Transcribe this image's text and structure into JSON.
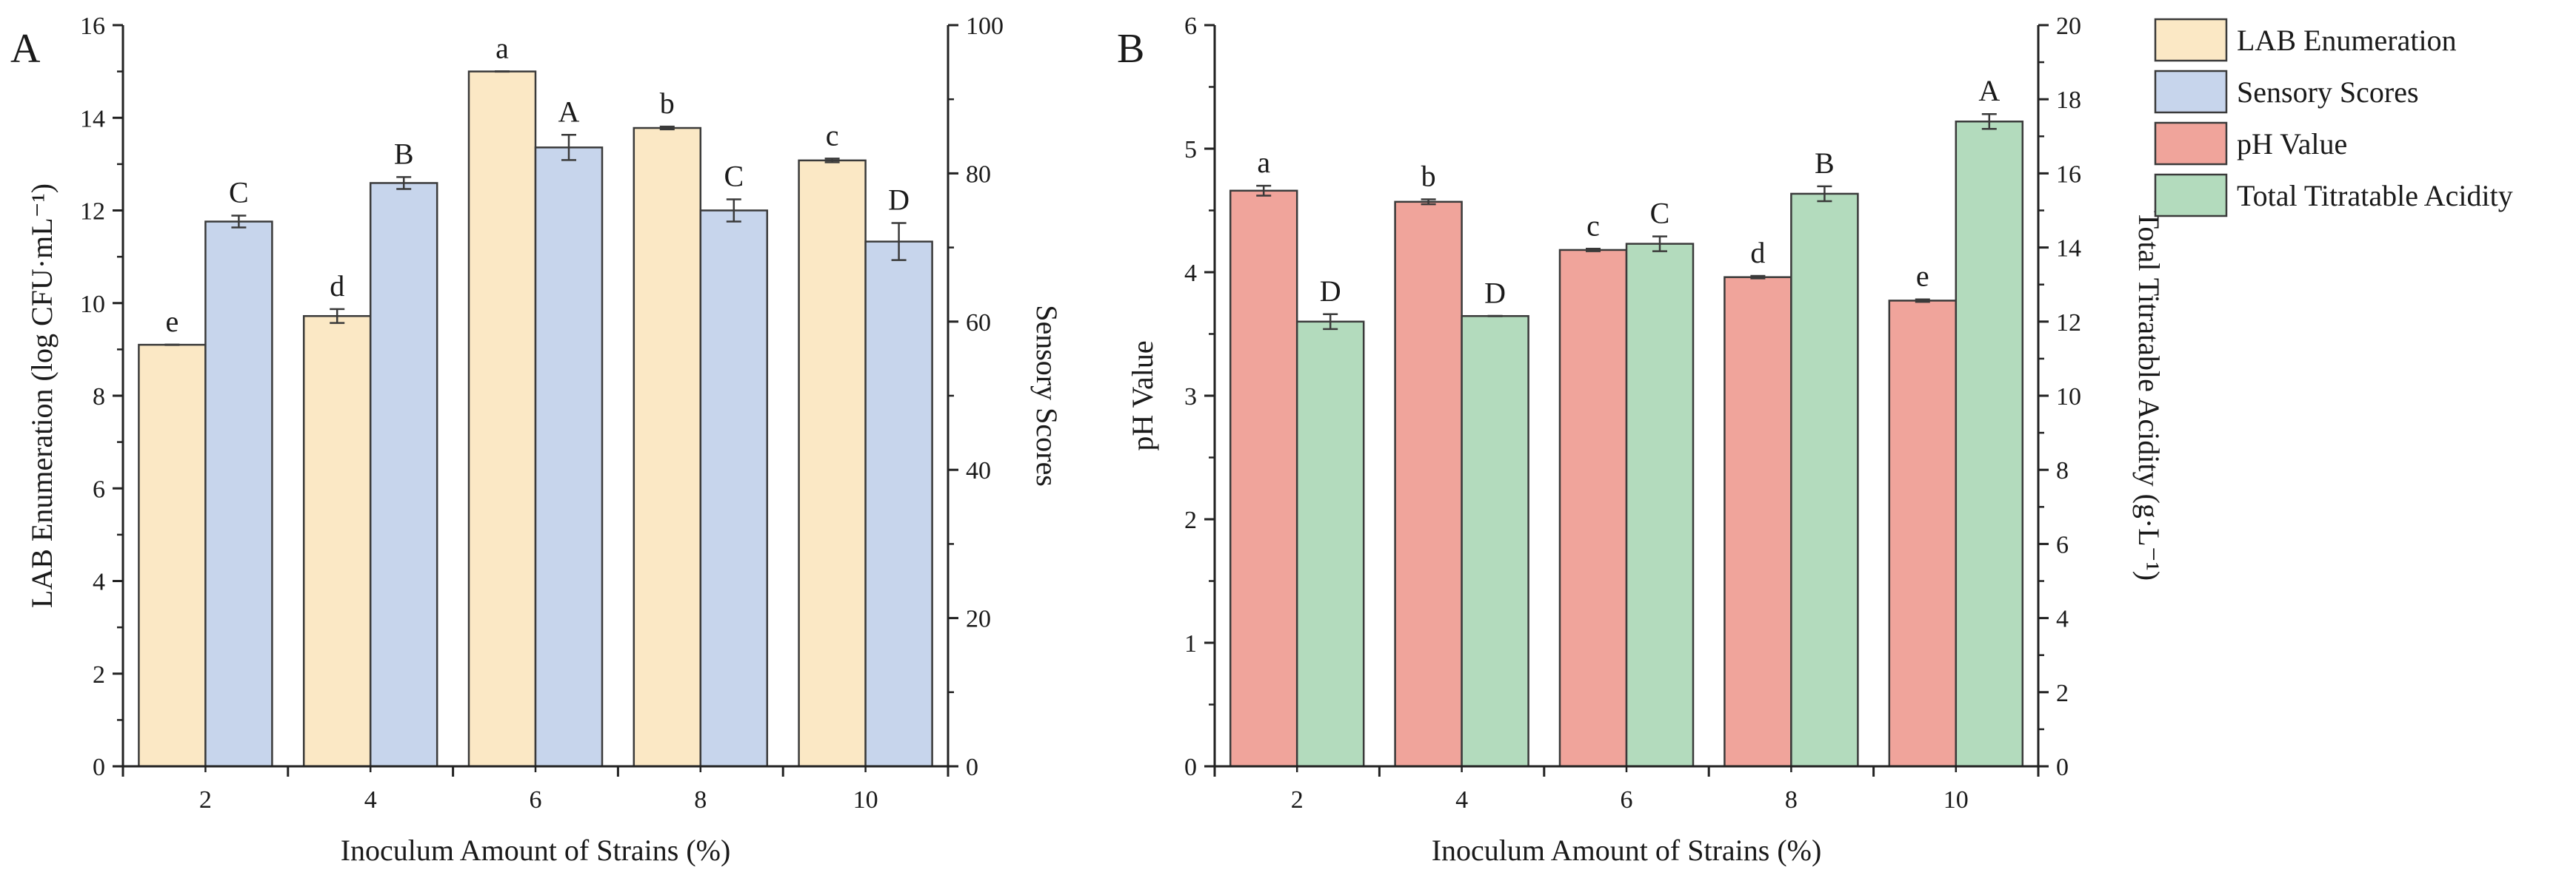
{
  "colors": {
    "lab": "#fbe8c5",
    "sensory": "#c7d5ec",
    "ph": "#f0a49b",
    "tta": "#b3dbbd",
    "bar_edge": "#3a3a3a",
    "axis": "#222222"
  },
  "legend": {
    "items": [
      {
        "label": "LAB Enumeration",
        "color": "#fbe8c5"
      },
      {
        "label": "Sensory Scores",
        "color": "#c7d5ec"
      },
      {
        "label": "pH Value",
        "color": "#f0a49b"
      },
      {
        "label": "Total Titratable Acidity",
        "color": "#b3dbbd"
      }
    ]
  },
  "chart_data": [
    {
      "type": "bar",
      "panel": "A",
      "categories": [
        "2",
        "4",
        "6",
        "8",
        "10"
      ],
      "xlabel": "Inoculum Amount of Strains (%)",
      "y_left": {
        "label": "LAB Enumeration (log CFU·mL⁻¹)",
        "ylim": [
          0,
          16
        ],
        "ticks": [
          0,
          2,
          4,
          6,
          8,
          10,
          12,
          14,
          16
        ]
      },
      "y_right": {
        "label": "Sensory Scores",
        "ylim": [
          0,
          100
        ],
        "ticks": [
          0,
          20,
          40,
          60,
          80,
          100
        ]
      },
      "series": [
        {
          "name": "LAB Enumeration",
          "axis": "left",
          "color": "#fbe8c5",
          "values": [
            9.1,
            9.72,
            15.0,
            13.78,
            13.08
          ],
          "errors": [
            0.0,
            0.15,
            0.0,
            0.03,
            0.04
          ],
          "letters": [
            "e",
            "d",
            "a",
            "b",
            "c"
          ]
        },
        {
          "name": "Sensory Scores",
          "axis": "right",
          "color": "#c7d5ec",
          "values": [
            73.5,
            78.7,
            83.5,
            75.0,
            70.8
          ],
          "errors": [
            0.8,
            0.8,
            1.7,
            1.5,
            2.5
          ],
          "letters": [
            "C",
            "B",
            "A",
            "C",
            "D"
          ]
        }
      ]
    },
    {
      "type": "bar",
      "panel": "B",
      "categories": [
        "2",
        "4",
        "6",
        "8",
        "10"
      ],
      "xlabel": "Inoculum Amount of Strains (%)",
      "y_left": {
        "label": "pH Value",
        "ylim": [
          0,
          6
        ],
        "ticks": [
          0,
          1,
          2,
          3,
          4,
          5,
          6
        ]
      },
      "y_right": {
        "label": "Total Titratable Acidity (g·L⁻¹)",
        "ylim": [
          0,
          20
        ],
        "ticks": [
          0,
          2,
          4,
          6,
          8,
          10,
          12,
          14,
          16,
          18,
          20
        ]
      },
      "series": [
        {
          "name": "pH Value",
          "axis": "left",
          "color": "#f0a49b",
          "values": [
            4.66,
            4.57,
            4.18,
            3.96,
            3.77
          ],
          "errors": [
            0.04,
            0.02,
            0.01,
            0.01,
            0.01
          ],
          "letters": [
            "a",
            "b",
            "c",
            "d",
            "e"
          ]
        },
        {
          "name": "Total Titratable Acidity",
          "axis": "right",
          "color": "#b3dbbd",
          "values": [
            12.0,
            12.15,
            14.1,
            15.45,
            17.4
          ],
          "errors": [
            0.2,
            0.0,
            0.2,
            0.2,
            0.2
          ],
          "letters": [
            "D",
            "D",
            "C",
            "B",
            "A"
          ]
        }
      ]
    }
  ]
}
